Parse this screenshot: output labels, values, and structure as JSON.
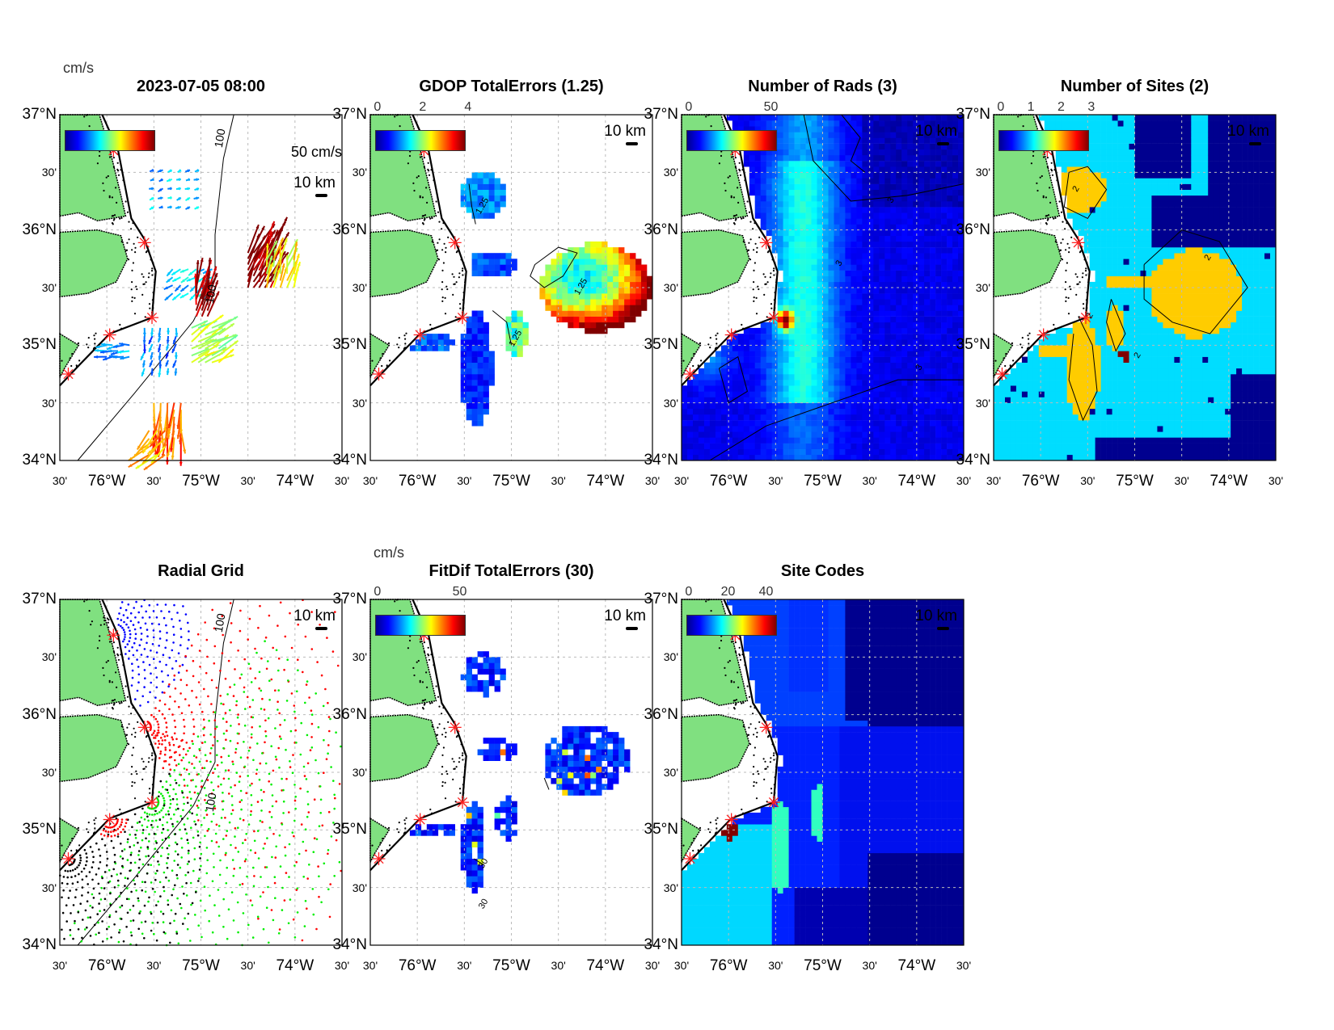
{
  "axes": {
    "lat_ticks": [
      "37°N",
      "30'",
      "36°N",
      "30'",
      "35°N",
      "30'",
      "34°N"
    ],
    "lon_ticks": [
      "30'",
      "76°W",
      "30'",
      "75°W",
      "30'",
      "74°W",
      "30'"
    ]
  },
  "panels": [
    {
      "id": "totals",
      "title": "2023-07-05 08:00",
      "colorbar_unit": "cm/s",
      "colorbar_ticks": [],
      "scale_label": "10 km",
      "vector_scale_label": "50 cm/s",
      "contour_labels": [
        "100",
        "100"
      ]
    },
    {
      "id": "gdop",
      "title": "GDOP TotalErrors (1.25)",
      "colorbar_ticks": [
        "0",
        "2",
        "4"
      ],
      "scale_label": "10 km",
      "contour_labels": [
        "1.25",
        "1.25",
        "1.25"
      ]
    },
    {
      "id": "rads",
      "title": "Number of Rads (3)",
      "colorbar_ticks": [
        "0",
        "50"
      ],
      "scale_label": "10 km",
      "contour_labels": [
        "3",
        "3",
        "3"
      ]
    },
    {
      "id": "sites",
      "title": "Number of Sites (2)",
      "colorbar_ticks": [
        "0",
        "1",
        "2",
        "3"
      ],
      "scale_label": "10 km",
      "contour_labels": [
        "2",
        "2",
        "2",
        "2"
      ]
    },
    {
      "id": "radial",
      "title": "Radial Grid",
      "colorbar_ticks": [],
      "scale_label": "10 km",
      "contour_labels": [
        "100",
        "100"
      ]
    },
    {
      "id": "fitdif",
      "title": "FitDif TotalErrors (30)",
      "colorbar_unit": "cm/s",
      "colorbar_ticks": [
        "0",
        "50"
      ],
      "scale_label": "10 km",
      "contour_labels": [
        "30",
        "30"
      ]
    },
    {
      "id": "sitecodes",
      "title": "Site Codes",
      "colorbar_ticks": [
        "0",
        "20",
        "40"
      ],
      "scale_label": "10 km",
      "contour_labels": []
    }
  ],
  "colors": {
    "land": "#80e080",
    "station": "#ff2020",
    "sites_one": "#00ddff",
    "sites_two": "#ffcc00",
    "navy": "#00008f"
  }
}
